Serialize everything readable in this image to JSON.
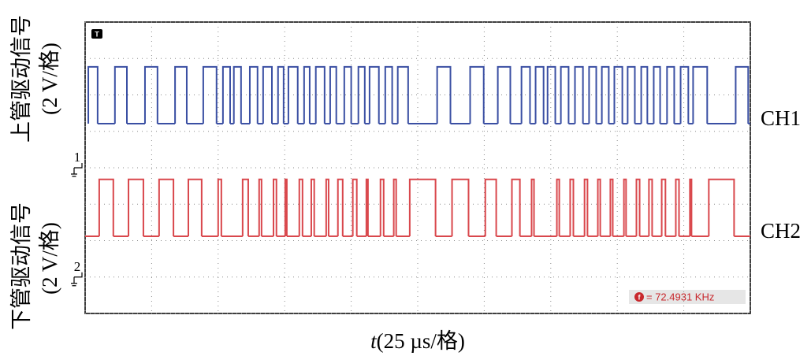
{
  "chart_data": {
    "type": "line",
    "xlim": [
      0,
      250
    ],
    "xticks": [
      0,
      25,
      50,
      75,
      100,
      125,
      150,
      175,
      200,
      225,
      250
    ],
    "ylim": [
      0,
      8
    ],
    "yticks": [
      0,
      1,
      2,
      3,
      4,
      5,
      6,
      7,
      8
    ],
    "grid": true,
    "x_label": {
      "var": "t",
      "unit": "(25 µs/格)"
    },
    "y_labels": [
      {
        "title": "上管驱动信号",
        "unit": "(2 V/格)"
      },
      {
        "title": "下管驱动信号",
        "unit": "(2 V/格)"
      }
    ],
    "trigger": "T",
    "frequency": {
      "icon": "f",
      "label": "= 72.4931 KHz"
    },
    "series": [
      {
        "name": "CH1",
        "color": "#3a4fa3",
        "marker": "1",
        "ref": 4,
        "levels": [
          5.21,
          6.77
        ],
        "pulses": [
          [
            1.2,
            4.7
          ],
          [
            11.2,
            15.7
          ],
          [
            22.5,
            27.2
          ],
          [
            33.8,
            38.2
          ],
          [
            44.4,
            49.4
          ],
          [
            51.8,
            54.5
          ],
          [
            55.9,
            58.6
          ],
          [
            61.9,
            64.8
          ],
          [
            66.9,
            70.2
          ],
          [
            72.5,
            74.6
          ],
          [
            76.4,
            79.9
          ],
          [
            82.3,
            84.4
          ],
          [
            86.7,
            90.0
          ],
          [
            92.1,
            94.4
          ],
          [
            97.4,
            100.0
          ],
          [
            102.7,
            105.1
          ],
          [
            106.9,
            110.4
          ],
          [
            112.8,
            115.4
          ],
          [
            117.5,
            121.4
          ],
          [
            132.3,
            137.3
          ],
          [
            144.7,
            149.8
          ],
          [
            155.1,
            159.8
          ],
          [
            164.0,
            167.2
          ],
          [
            169.3,
            172.3
          ],
          [
            173.8,
            176.7
          ],
          [
            178.8,
            181.7
          ],
          [
            184.1,
            187.1
          ],
          [
            189.4,
            192.1
          ],
          [
            194.2,
            196.8
          ],
          [
            198.9,
            201.9
          ],
          [
            203.9,
            206.6
          ],
          [
            209.0,
            211.3
          ],
          [
            213.7,
            216.1
          ],
          [
            218.7,
            221.4
          ],
          [
            223.8,
            226.7
          ],
          [
            228.5,
            233.8
          ],
          [
            244.5,
            249.2
          ]
        ]
      },
      {
        "name": "CH2",
        "color": "#d9474c",
        "marker": "2",
        "ref": 1,
        "levels": [
          2.12,
          3.68
        ],
        "pulses": [
          [
            5.3,
            10.6
          ],
          [
            16.3,
            21.9
          ],
          [
            27.8,
            33.2
          ],
          [
            38.8,
            43.8
          ],
          [
            50.0,
            51.2
          ],
          [
            59.2,
            61.3
          ],
          [
            65.4,
            66.3
          ],
          [
            70.8,
            71.9
          ],
          [
            75.2,
            75.8
          ],
          [
            80.5,
            81.7
          ],
          [
            85.0,
            86.1
          ],
          [
            90.6,
            91.5
          ],
          [
            95.0,
            96.8
          ],
          [
            100.6,
            102.1
          ],
          [
            105.7,
            106.3
          ],
          [
            111.0,
            112.2
          ],
          [
            116.0,
            116.9
          ],
          [
            122.0,
            131.7
          ],
          [
            137.9,
            144.1
          ],
          [
            150.4,
            154.5
          ],
          [
            160.4,
            163.4
          ],
          [
            167.8,
            168.7
          ],
          [
            177.3,
            178.2
          ],
          [
            182.3,
            183.5
          ],
          [
            187.7,
            188.8
          ],
          [
            192.7,
            193.6
          ],
          [
            197.4,
            198.3
          ],
          [
            202.5,
            203.3
          ],
          [
            207.2,
            208.4
          ],
          [
            211.9,
            213.1
          ],
          [
            216.7,
            218.1
          ],
          [
            222.0,
            223.2
          ],
          [
            227.3,
            227.9
          ],
          [
            234.4,
            243.9
          ]
        ]
      }
    ]
  }
}
